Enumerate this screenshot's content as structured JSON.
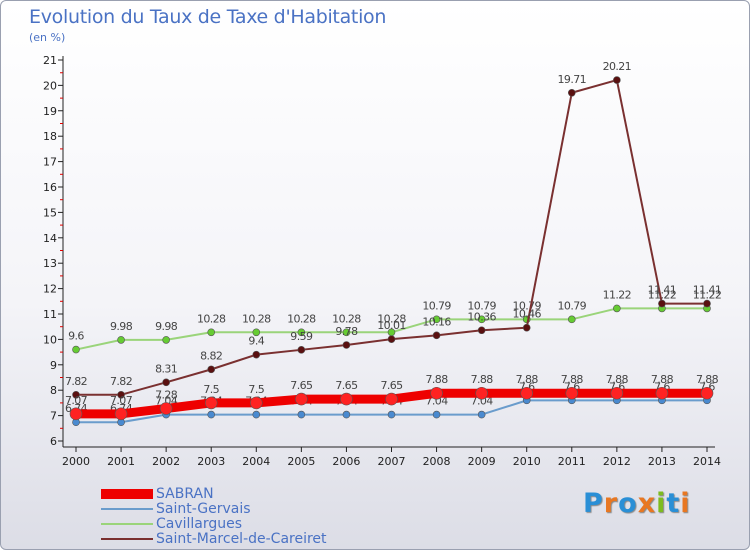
{
  "header": {
    "title": "Evolution du Taux de Taxe d'Habitation",
    "unit": "(en %)"
  },
  "brand": {
    "logo": "Proxiti",
    "colors": [
      "#2a8fd6",
      "#e87722",
      "#2a8fd6",
      "#e87722",
      "#7dbb1f",
      "#2a8fd6",
      "#e87722"
    ]
  },
  "chart_data": {
    "type": "line",
    "title": "Evolution du Taux de Taxe d'Habitation",
    "ylabel": "(en %)",
    "xlabel": "",
    "x": [
      "2000",
      "2001",
      "2002",
      "2003",
      "2004",
      "2005",
      "2006",
      "2007",
      "2008",
      "2009",
      "2010",
      "2011",
      "2012",
      "2013",
      "2014"
    ],
    "ylim": [
      6,
      21
    ],
    "yticks": [
      "6",
      "7",
      "8",
      "9",
      "10",
      "11",
      "12",
      "13",
      "14",
      "15",
      "16",
      "17",
      "18",
      "19",
      "20",
      "21"
    ],
    "grid": false,
    "legend": "bottom-left",
    "series": [
      {
        "name": "Saint-Gervais",
        "color": "#6a9ccc",
        "marker": "#4a8ad0",
        "values": [
          6.74,
          6.74,
          7.04,
          7.04,
          7.04,
          7.04,
          7.04,
          7.04,
          7.04,
          7.04,
          7.6,
          7.6,
          7.6,
          7.6,
          7.6
        ],
        "labels": [
          "6.74",
          "6.74",
          "7.04",
          "7.04",
          "7.04",
          "7.04",
          "7.04",
          "7.04",
          "7.04",
          "7.04",
          "7.6",
          "7.6",
          "7.6",
          "7.6",
          "7.6"
        ]
      },
      {
        "name": "Cavillargues",
        "color": "#9ad47a",
        "marker": "#66cc33",
        "values": [
          9.6,
          9.98,
          9.98,
          10.28,
          10.28,
          10.28,
          10.28,
          10.28,
          10.79,
          10.79,
          10.79,
          10.79,
          11.22,
          11.22,
          11.22
        ],
        "labels": [
          "9.6",
          "9.98",
          "9.98",
          "10.28",
          "10.28",
          "10.28",
          "10.28",
          "10.28",
          "10.79",
          "10.79",
          "10.79",
          "10.79",
          "11.22",
          "11.22",
          "11.22"
        ]
      },
      {
        "name": "Saint-Marcel-de-Careiret",
        "color": "#7a3030",
        "marker": "#5a1010",
        "values": [
          7.82,
          7.82,
          8.31,
          8.82,
          9.4,
          9.59,
          9.78,
          10.01,
          10.16,
          10.36,
          10.46,
          19.71,
          20.21,
          11.41,
          11.41
        ],
        "labels": [
          "7.82",
          "7.82",
          "8.31",
          "8.82",
          "9.4",
          "9.59",
          "9.78",
          "10.01",
          "10.16",
          "10.36",
          "10.46",
          "19.71",
          "20.21",
          "11.41",
          "11.41"
        ]
      },
      {
        "name": "SABRAN",
        "color": "#ee0000",
        "marker": "#ff2222",
        "values": [
          7.07,
          7.07,
          7.28,
          7.5,
          7.5,
          7.65,
          7.65,
          7.65,
          7.88,
          7.88,
          7.88,
          7.88,
          7.88,
          7.88,
          7.88
        ],
        "labels": [
          "7.07",
          "7.07",
          "7.28",
          "7.5",
          "7.5",
          "7.65",
          "7.65",
          "7.65",
          "7.88",
          "7.88",
          "7.88",
          "7.88",
          "7.88",
          "7.88",
          "7.88"
        ]
      }
    ]
  },
  "legend_items": [
    {
      "label": "SABRAN",
      "color": "#ee0000",
      "thick": 9
    },
    {
      "label": "Saint-Gervais",
      "color": "#6a9ccc",
      "thick": 2
    },
    {
      "label": "Cavillargues",
      "color": "#9ad47a",
      "thick": 2
    },
    {
      "label": "Saint-Marcel-de-Careiret",
      "color": "#7a3030",
      "thick": 2
    }
  ]
}
